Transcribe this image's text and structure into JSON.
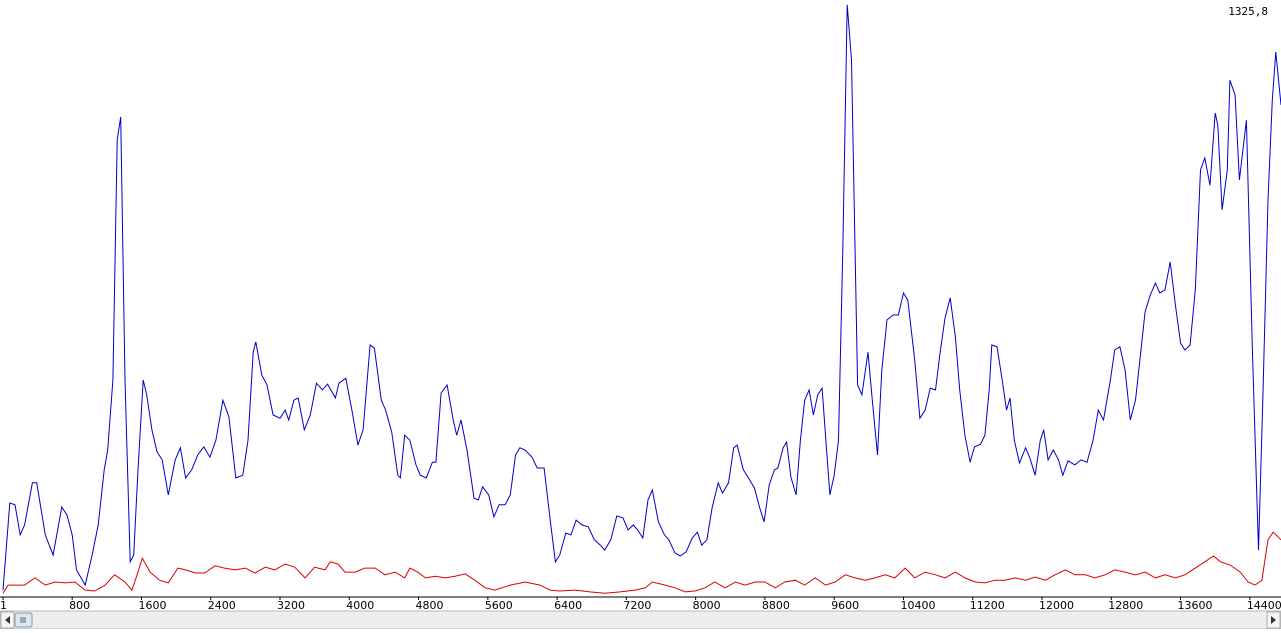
{
  "chart_data": {
    "type": "line",
    "xlim": [
      1,
      14760
    ],
    "xticks": [
      1,
      800,
      1600,
      2400,
      3200,
      4000,
      4800,
      5600,
      6400,
      7200,
      8000,
      8800,
      9600,
      10400,
      11200,
      12000,
      12800,
      13600,
      14400
    ],
    "ylim": [
      0,
      1325.8
    ],
    "yticks": [
      {
        "value": 1325.8,
        "label": "1325,8"
      }
    ],
    "series": [
      {
        "color": "#0000cc",
        "x": [
          1,
          80,
          140,
          200,
          250,
          340,
          390,
          490,
          580,
          680,
          740,
          800,
          850,
          950,
          1030,
          1100,
          1170,
          1210,
          1270,
          1320,
          1360,
          1410,
          1470,
          1510,
          1560,
          1620,
          1660,
          1720,
          1780,
          1840,
          1910,
          1990,
          2050,
          2110,
          2180,
          2250,
          2320,
          2390,
          2460,
          2540,
          2610,
          2690,
          2770,
          2830,
          2890,
          2920,
          2990,
          3050,
          3120,
          3200,
          3260,
          3300,
          3360,
          3410,
          3480,
          3550,
          3620,
          3690,
          3750,
          3840,
          3880,
          3960,
          4030,
          4100,
          4160,
          4240,
          4290,
          4370,
          4420,
          4490,
          4560,
          4590,
          4640,
          4700,
          4770,
          4820,
          4890,
          4960,
          5000,
          5060,
          5130,
          5200,
          5240,
          5290,
          5360,
          5440,
          5490,
          5540,
          5610,
          5670,
          5730,
          5800,
          5860,
          5920,
          5970,
          6030,
          6110,
          6170,
          6250,
          6320,
          6380,
          6430,
          6500,
          6560,
          6620,
          6690,
          6760,
          6830,
          6900,
          6950,
          7020,
          7090,
          7160,
          7220,
          7280,
          7330,
          7390,
          7450,
          7500,
          7570,
          7640,
          7690,
          7760,
          7820,
          7890,
          7960,
          8020,
          8070,
          8130,
          8190,
          8260,
          8310,
          8380,
          8440,
          8480,
          8550,
          8610,
          8680,
          8740,
          8790,
          8850,
          8910,
          8950,
          9010,
          9050,
          9100,
          9160,
          9210,
          9260,
          9310,
          9360,
          9410,
          9460,
          9510,
          9550,
          9600,
          9650,
          9700,
          9750,
          9800,
          9870,
          9920,
          9990,
          10040,
          10100,
          10150,
          10210,
          10280,
          10340,
          10400,
          10450,
          10530,
          10590,
          10650,
          10710,
          10770,
          10820,
          10880,
          10940,
          11000,
          11050,
          11110,
          11170,
          11220,
          11290,
          11340,
          11390,
          11420,
          11480,
          11540,
          11590,
          11630,
          11680,
          11740,
          11810,
          11860,
          11920,
          11980,
          12020,
          12070,
          12130,
          12190,
          12240,
          12300,
          12380,
          12450,
          12520,
          12590,
          12650,
          12710,
          12790,
          12840,
          12900,
          12960,
          13020,
          13080,
          13130,
          13190,
          13250,
          13310,
          13360,
          13420,
          13480,
          13540,
          13600,
          13650,
          13710,
          13770,
          13830,
          13880,
          13940,
          14000,
          14030,
          14080,
          14140,
          14170,
          14230,
          14280,
          14360,
          14430,
          14500,
          14550,
          14610,
          14660,
          14700,
          14760
        ],
        "values": [
          11,
          205,
          201,
          134,
          156,
          250,
          250,
          134,
          89,
          196,
          178,
          134,
          56,
          22,
          89,
          156,
          279,
          323,
          479,
          1014,
          1065,
          479,
          74,
          89,
          279,
          479,
          446,
          368,
          319,
          301,
          223,
          301,
          328,
          261,
          279,
          312,
          330,
          307,
          345,
          434,
          397,
          261,
          267,
          345,
          541,
          564,
          490,
          468,
          401,
          394,
          412,
          390,
          434,
          439,
          368,
          401,
          472,
          457,
          470,
          439,
          472,
          483,
          412,
          334,
          368,
          557,
          550,
          434,
          412,
          363,
          267,
          261,
          356,
          345,
          290,
          267,
          261,
          296,
          296,
          450,
          468,
          390,
          356,
          390,
          323,
          216,
          212,
          241,
          223,
          174,
          201,
          201,
          223,
          312,
          328,
          323,
          307,
          283,
          283,
          167,
          74,
          89,
          138,
          134,
          167,
          156,
          152,
          123,
          111,
          100,
          123,
          176,
          172,
          145,
          156,
          145,
          127,
          212,
          234,
          163,
          134,
          123,
          94,
          87,
          96,
          127,
          140,
          111,
          123,
          194,
          250,
          227,
          250,
          328,
          334,
          279,
          261,
          238,
          194,
          163,
          245,
          279,
          283,
          328,
          341,
          263,
          223,
          345,
          434,
          457,
          401,
          446,
          461,
          328,
          223,
          267,
          345,
          769,
          1315,
          1192,
          468,
          446,
          541,
          434,
          312,
          501,
          613,
          624,
          624,
          673,
          657,
          524,
          394,
          412,
          461,
          457,
          535,
          617,
          662,
          575,
          457,
          356,
          296,
          330,
          336,
          356,
          457,
          557,
          553,
          479,
          412,
          439,
          345,
          294,
          328,
          305,
          267,
          345,
          368,
          301,
          323,
          301,
          267,
          299,
          290,
          301,
          296,
          345,
          412,
          390,
          479,
          546,
          553,
          501,
          390,
          434,
          524,
          631,
          668,
          695,
          673,
          680,
          742,
          646,
          561,
          546,
          557,
          680,
          947,
          974,
          913,
          1074,
          1047,
          858,
          947,
          1147,
          1114,
          925,
          1058,
          546,
          100,
          434,
          880,
          1103,
          1210,
          1092
        ]
      },
      {
        "color": "#dd0000",
        "x": [
          1,
          60,
          140,
          250,
          370,
          490,
          600,
          720,
          830,
          950,
          1060,
          1180,
          1290,
          1410,
          1490,
          1550,
          1610,
          1700,
          1810,
          1910,
          2020,
          2110,
          2220,
          2330,
          2450,
          2560,
          2680,
          2800,
          2910,
          3030,
          3140,
          3260,
          3370,
          3490,
          3600,
          3720,
          3780,
          3870,
          3950,
          4070,
          4180,
          4300,
          4410,
          4530,
          4640,
          4700,
          4790,
          4880,
          4990,
          5110,
          5220,
          5340,
          5450,
          5570,
          5680,
          5860,
          6030,
          6200,
          6320,
          6430,
          6610,
          6780,
          6950,
          7130,
          7300,
          7420,
          7500,
          7650,
          7760,
          7880,
          7990,
          8110,
          8220,
          8340,
          8460,
          8570,
          8690,
          8800,
          8920,
          9030,
          9150,
          9260,
          9380,
          9500,
          9610,
          9730,
          9840,
          9960,
          10070,
          10190,
          10300,
          10420,
          10530,
          10650,
          10770,
          10880,
          11000,
          11110,
          11230,
          11340,
          11460,
          11570,
          11690,
          11810,
          11920,
          12040,
          12150,
          12270,
          12380,
          12500,
          12610,
          12730,
          12840,
          12960,
          13080,
          13190,
          13310,
          13420,
          13540,
          13650,
          13770,
          13880,
          13980,
          14060,
          14170,
          14290,
          14380,
          14460,
          14540,
          14610,
          14670,
          14760
        ],
        "values": [
          4,
          22,
          22,
          22,
          38,
          22,
          29,
          27,
          29,
          11,
          9,
          22,
          45,
          29,
          11,
          45,
          82,
          51,
          33,
          27,
          60,
          56,
          49,
          49,
          65,
          60,
          56,
          60,
          49,
          62,
          56,
          69,
          62,
          38,
          62,
          56,
          74,
          69,
          51,
          51,
          60,
          60,
          45,
          51,
          38,
          60,
          51,
          38,
          42,
          38,
          42,
          47,
          33,
          16,
          11,
          22,
          29,
          22,
          11,
          9,
          11,
          7,
          4,
          7,
          11,
          16,
          29,
          22,
          16,
          7,
          9,
          16,
          29,
          16,
          29,
          22,
          29,
          29,
          16,
          29,
          33,
          22,
          38,
          22,
          29,
          45,
          38,
          33,
          38,
          45,
          38,
          60,
          38,
          51,
          45,
          38,
          51,
          38,
          29,
          27,
          33,
          33,
          38,
          33,
          40,
          33,
          45,
          56,
          45,
          45,
          38,
          45,
          56,
          51,
          45,
          51,
          38,
          45,
          38,
          45,
          60,
          74,
          87,
          74,
          67,
          51,
          29,
          22,
          33,
          123,
          140,
          123
        ]
      }
    ]
  }
}
